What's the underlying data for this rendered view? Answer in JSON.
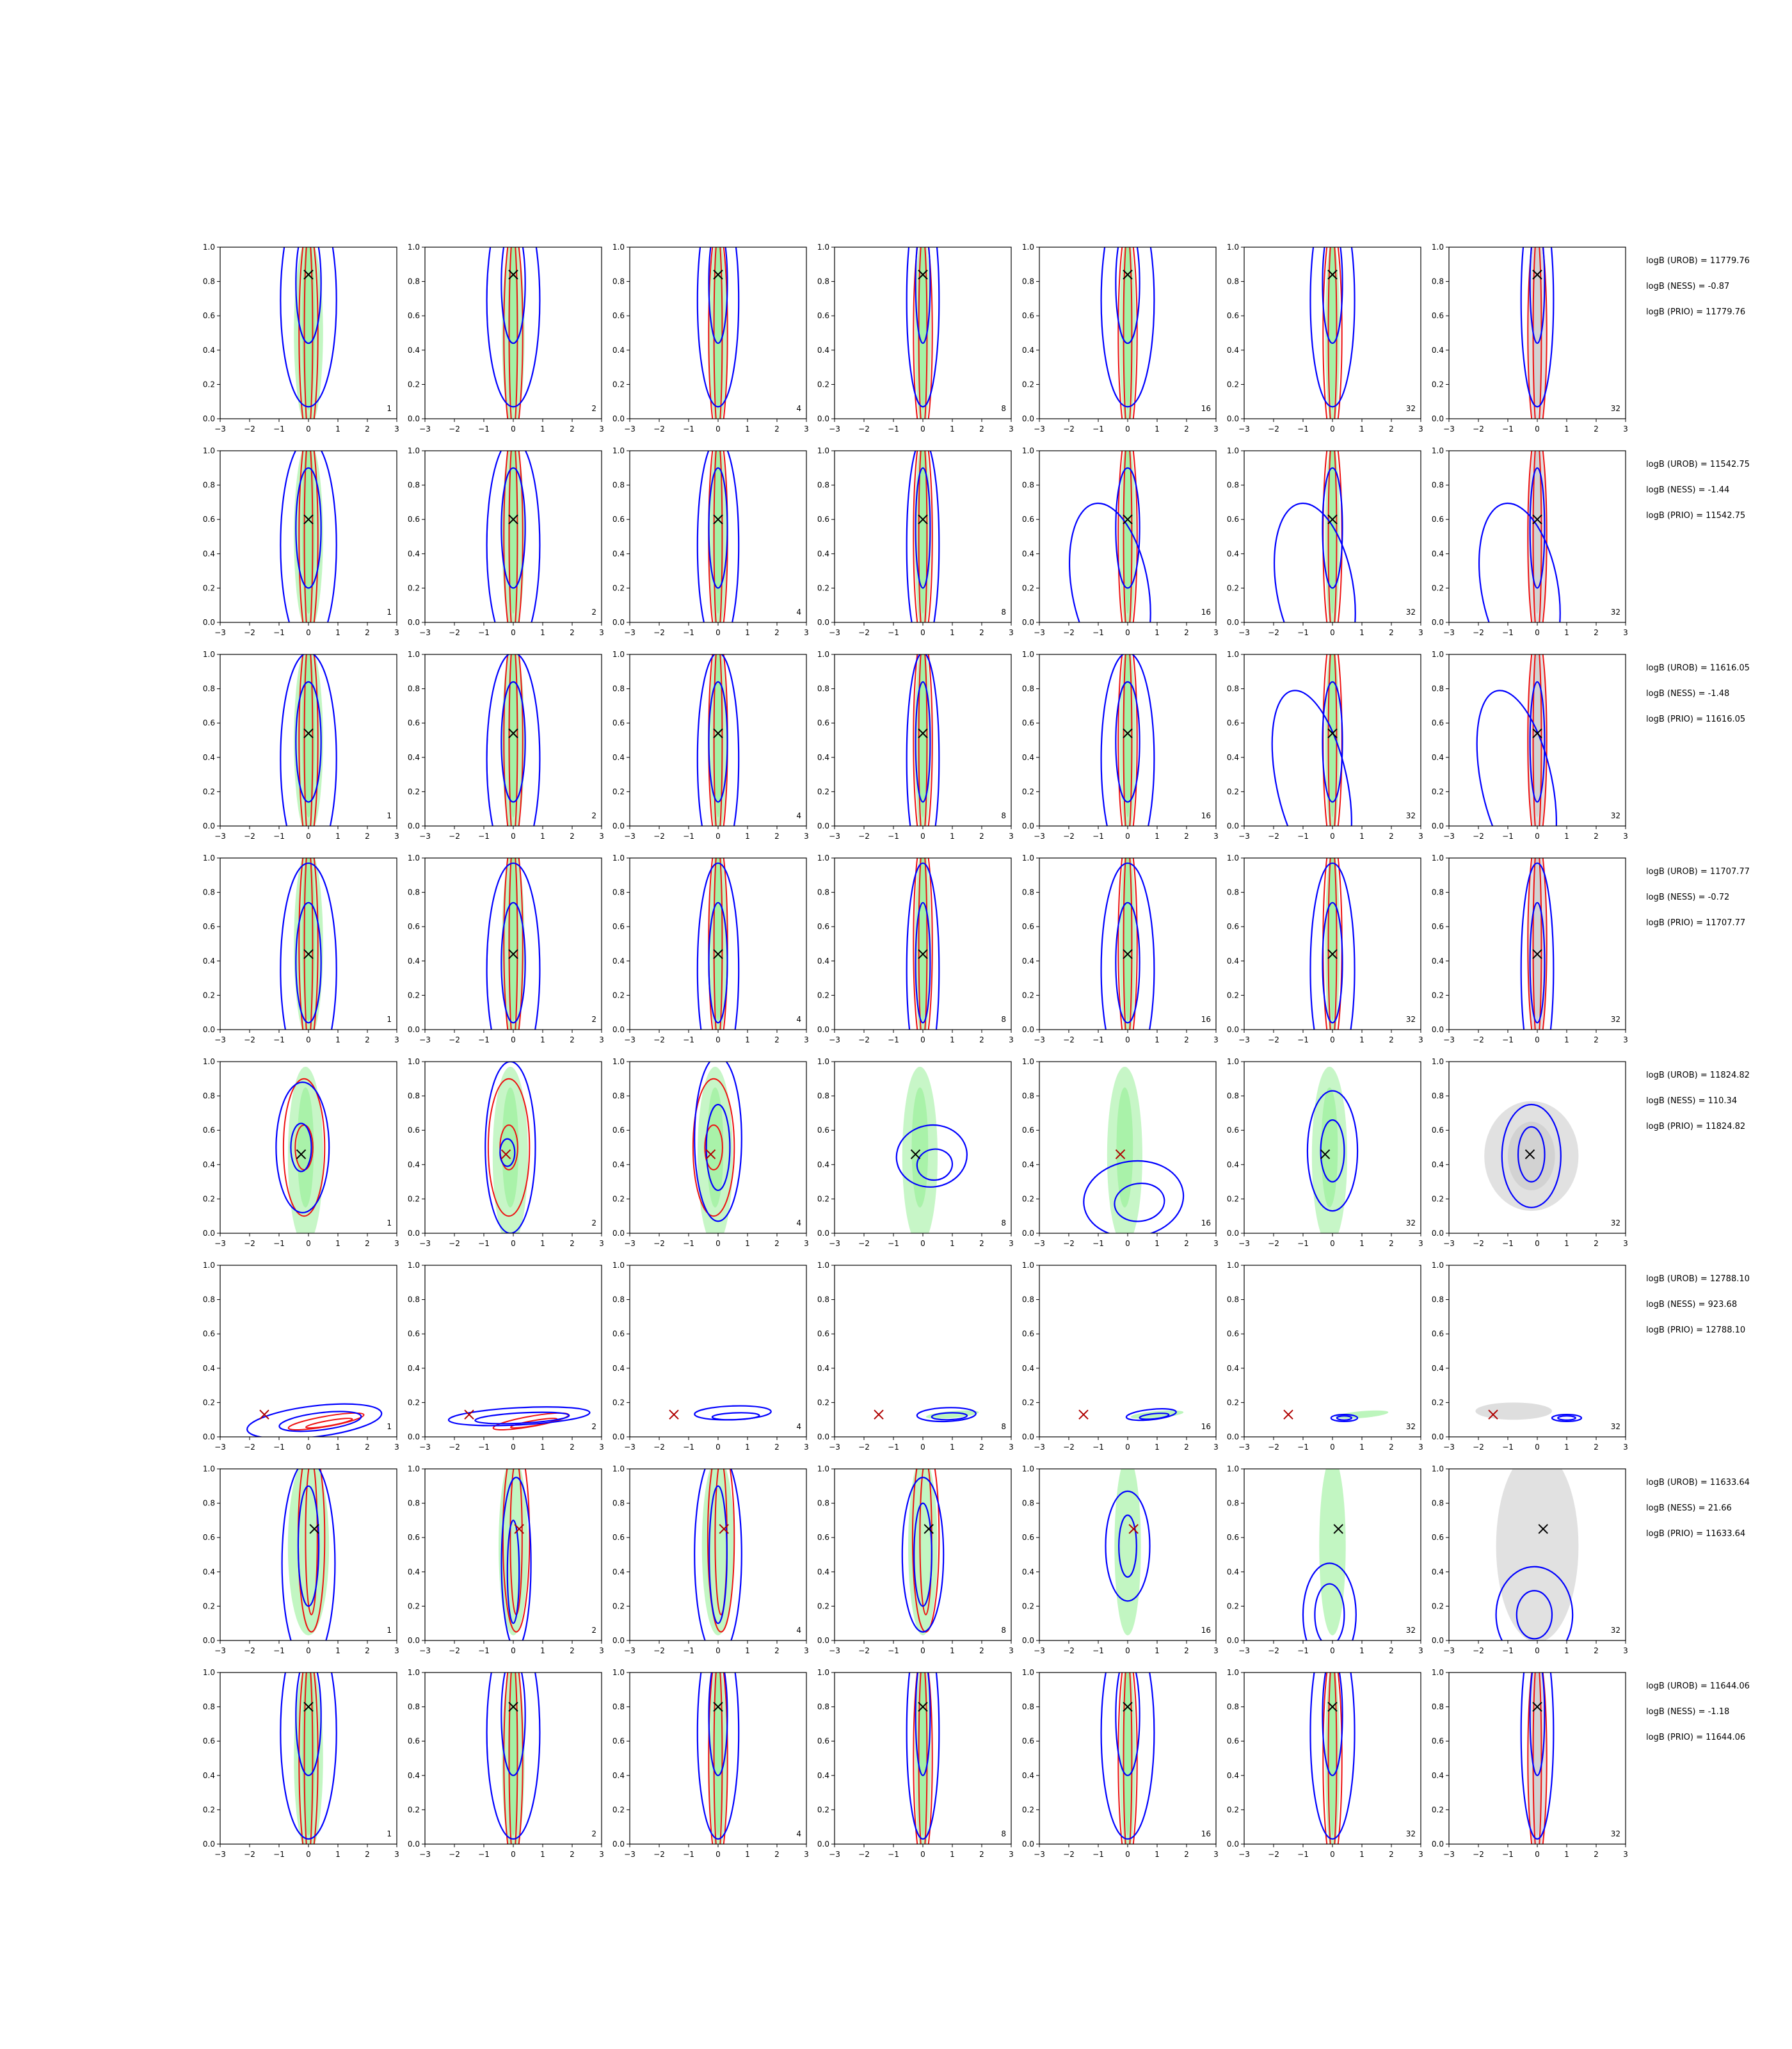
{
  "colors": {
    "proposal_fill": "#90ee90",
    "prior_fill": "#c8c8c8",
    "robust_contour": "#0000ff",
    "nonrobust_contour": "#ee1111",
    "truth_marker": "#000000",
    "truth_marker_rows_5_8": "#b00000"
  },
  "chart_data": {
    "type": "contour",
    "grid": {
      "rows": 8,
      "cols": 7
    },
    "x_ticks": [
      "−3",
      "−2",
      "−1",
      "0",
      "1",
      "2",
      "3"
    ],
    "y_ticks": [
      "0.0",
      "0.2",
      "0.4",
      "0.6",
      "0.8",
      "1.0"
    ],
    "xlim": [
      -3,
      3
    ],
    "ylim": [
      0,
      1
    ],
    "panel_labels": [
      "1",
      "2",
      "4",
      "8",
      "16",
      "32",
      "32"
    ],
    "truth": [
      {
        "x": 0.0,
        "y": 0.84
      },
      {
        "x": 0.0,
        "y": 0.6
      },
      {
        "x": 0.0,
        "y": 0.54
      },
      {
        "x": 0.0,
        "y": 0.44
      },
      {
        "x": -0.25,
        "y": 0.46
      },
      {
        "x": -1.5,
        "y": 0.13
      },
      {
        "x": 0.2,
        "y": 0.65
      },
      {
        "x": 0.0,
        "y": 0.8
      }
    ],
    "annotations": [
      {
        "urob": "logB (UROB) = 11779.76",
        "ness": "logB (NESS) = -0.87",
        "prio": "logB (PRIO) = 11779.76"
      },
      {
        "urob": "logB (UROB) = 11542.75",
        "ness": "logB (NESS) = -1.44",
        "prio": "logB (PRIO) = 11542.75"
      },
      {
        "urob": "logB (UROB) = 11616.05",
        "ness": "logB (NESS) = -1.48",
        "prio": "logB (PRIO) = 11616.05"
      },
      {
        "urob": "logB (UROB) = 11707.77",
        "ness": "logB (NESS) = -0.72",
        "prio": "logB (PRIO) = 11707.77"
      },
      {
        "urob": "logB (UROB) = 11824.82",
        "ness": "logB (NESS) = 110.34",
        "prio": "logB (PRIO) = 11824.82"
      },
      {
        "urob": "logB (UROB) = 12788.10",
        "ness": "logB (NESS) = 923.68",
        "prio": "logB (PRIO) = 12788.10"
      },
      {
        "urob": "logB (UROB) = 11633.64",
        "ness": "logB (NESS) = 21.66",
        "prio": "logB (PRIO) = 11633.64"
      },
      {
        "urob": "logB (UROB) = 11644.06",
        "ness": "logB (NESS) = -1.18",
        "prio": "logB (PRIO) = 11644.06"
      }
    ]
  }
}
